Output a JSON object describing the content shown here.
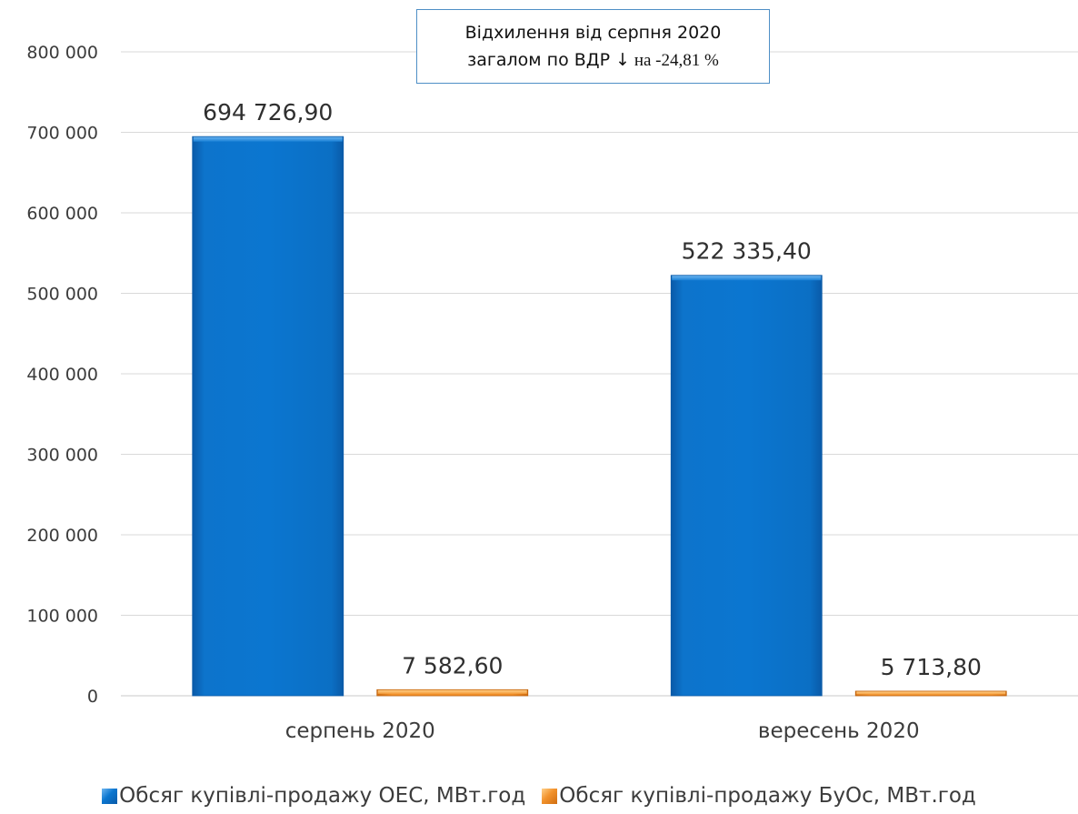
{
  "chart_data": {
    "type": "bar",
    "categories": [
      "серпень 2020",
      "вересень 2020"
    ],
    "series": [
      {
        "name": "Обсяг купівлі-продажу ОЕС, МВт.год",
        "values": [
          694726.9,
          522335.4
        ],
        "labels": [
          "694 726,90",
          "522 335,40"
        ],
        "color": "#0b72c8"
      },
      {
        "name": "Обсяг купівлі-продажу БуОс, МВт.год",
        "values": [
          7582.6,
          5713.8
        ],
        "labels": [
          "7 582,60",
          "5 713,80"
        ],
        "color": "#f0902a"
      }
    ],
    "ylim": [
      0,
      800000
    ],
    "yticks": [
      0,
      100000,
      200000,
      300000,
      400000,
      500000,
      600000,
      700000,
      800000
    ],
    "ytick_labels": [
      "0",
      "100 000",
      "200 000",
      "300 000",
      "400 000",
      "500 000",
      "600 000",
      "700 000",
      "800 000"
    ],
    "grid": true,
    "legend_position": "bottom",
    "annotation": {
      "line1": "Відхилення від серпня 2020",
      "line2_prefix": "загалом по ВДР ↓",
      "line2_value": " на -24,81 %"
    }
  }
}
